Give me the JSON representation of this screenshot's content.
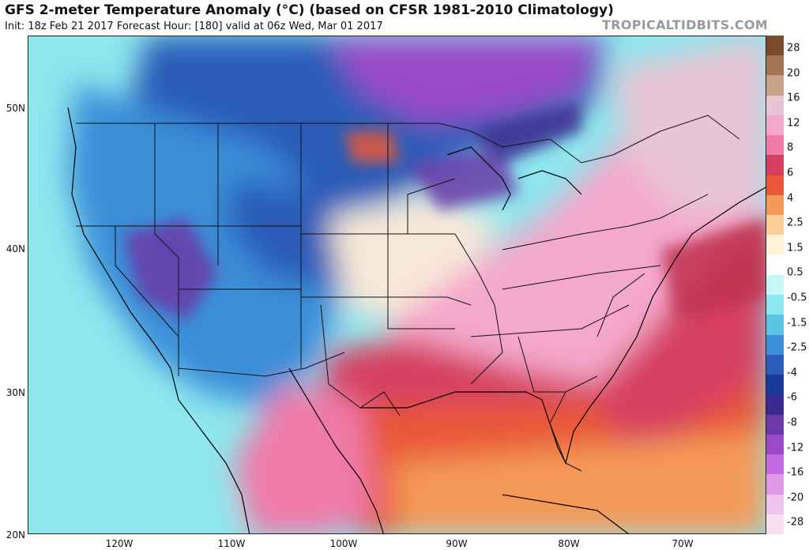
{
  "header": {
    "title": "GFS 2-meter Temperature Anomaly (°C) (based on CFSR 1981-2010 Climatology)",
    "subtitle": "Init: 18z Feb 21 2017   Forecast Hour: [180]   valid at 06z Wed, Mar 01 2017",
    "brand": "TROPICALTIDBITS.COM"
  },
  "axes": {
    "lat_labels": [
      "50N",
      "40N",
      "30N",
      "20N"
    ],
    "lon_labels": [
      "120W",
      "110W",
      "100W",
      "90W",
      "80W",
      "70W"
    ]
  },
  "colorbar": {
    "labels": [
      "28",
      "20",
      "16",
      "12",
      "8",
      "6",
      "4",
      "2.5",
      "1.5",
      "0.5",
      "-0.5",
      "-1.5",
      "-2.5",
      "-4",
      "-6",
      "-8",
      "-12",
      "-16",
      "-20",
      "-28"
    ],
    "colors": [
      "#7a4a2a",
      "#a47352",
      "#c9a28a",
      "#e8c4d4",
      "#f4a8cc",
      "#f07aa8",
      "#d64060",
      "#e85838",
      "#f49a58",
      "#f8d098",
      "#fff4d8",
      "#ffffff",
      "#c8f6f8",
      "#8ee6ee",
      "#5cc2e6",
      "#3a8ed8",
      "#2a5cb8",
      "#1a3a98",
      "#3a2a90",
      "#6a3aa8",
      "#9a4ac8",
      "#c46ae0",
      "#e09ae8",
      "#f0c4f0",
      "#f8e0f0"
    ]
  }
}
